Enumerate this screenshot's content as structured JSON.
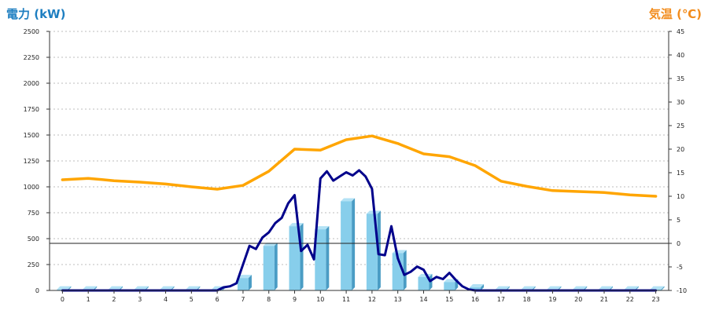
{
  "chart_data": {
    "type": "bar",
    "left_axis_title": "電力 (kW)",
    "right_axis_title": "気温 (℃)",
    "left_axis_color": "#1f7fc1",
    "right_axis_color": "#f28c1c",
    "ylim_left": [
      0,
      2500
    ],
    "ylim_right": [
      -10,
      45
    ],
    "yticks_left": [
      "0",
      "250",
      "500",
      "750",
      "1000",
      "1250",
      "1500",
      "1750",
      "2000",
      "2250",
      "2500"
    ],
    "yticks_right": [
      "-10",
      "-5",
      "0",
      "5",
      "10",
      "15",
      "20",
      "25",
      "30",
      "35",
      "40",
      "45"
    ],
    "categories": [
      "0",
      "1",
      "2",
      "3",
      "4",
      "5",
      "6",
      "7",
      "8",
      "9",
      "10",
      "11",
      "12",
      "13",
      "14",
      "15",
      "16",
      "17",
      "18",
      "19",
      "20",
      "21",
      "22",
      "23"
    ],
    "grid": "horizontal dotted",
    "series": [
      {
        "kind": "bar",
        "axis": "left",
        "color": "#87ceeb",
        "values": [
          10,
          10,
          10,
          10,
          10,
          10,
          10,
          120,
          430,
          620,
          590,
          860,
          740,
          360,
          130,
          80,
          30,
          10,
          10,
          10,
          10,
          10,
          10,
          10
        ]
      },
      {
        "kind": "line",
        "axis": "right",
        "color": "#ffa500",
        "x": [
          0,
          1,
          2,
          3,
          4,
          5,
          6,
          7,
          8,
          9,
          10,
          11,
          12,
          13,
          14,
          15,
          16,
          17,
          18,
          19,
          20,
          21,
          22,
          23
        ],
        "values": [
          13.5,
          13.8,
          13.3,
          13.0,
          12.6,
          12.0,
          11.5,
          12.3,
          15.3,
          20.0,
          19.8,
          22.0,
          22.8,
          21.2,
          19.0,
          18.4,
          16.5,
          13.2,
          12.1,
          11.2,
          11.0,
          10.8,
          10.3,
          10.0
        ]
      },
      {
        "kind": "line",
        "axis": "left",
        "color": "#00008b",
        "x": [
          0,
          1,
          2,
          3,
          4,
          5,
          6,
          6.25,
          6.5,
          6.75,
          7,
          7.25,
          7.5,
          7.75,
          8,
          8.25,
          8.5,
          8.75,
          9,
          9.25,
          9.5,
          9.75,
          10,
          10.25,
          10.5,
          10.75,
          11,
          11.25,
          11.5,
          11.75,
          12,
          12.25,
          12.5,
          12.75,
          13,
          13.25,
          13.5,
          13.75,
          14,
          14.25,
          14.5,
          14.75,
          15,
          15.25,
          15.5,
          15.75,
          16,
          17,
          18,
          19,
          20,
          21,
          22,
          23
        ],
        "values": [
          0,
          0,
          0,
          0,
          0,
          0,
          0,
          30,
          40,
          70,
          250,
          430,
          400,
          510,
          560,
          650,
          700,
          840,
          920,
          380,
          440,
          300,
          1080,
          1150,
          1060,
          1100,
          1140,
          1110,
          1160,
          1100,
          980,
          350,
          340,
          620,
          310,
          150,
          180,
          230,
          200,
          90,
          130,
          110,
          170,
          100,
          40,
          10,
          0,
          0,
          0,
          0,
          0,
          0,
          0,
          0
        ]
      }
    ]
  }
}
